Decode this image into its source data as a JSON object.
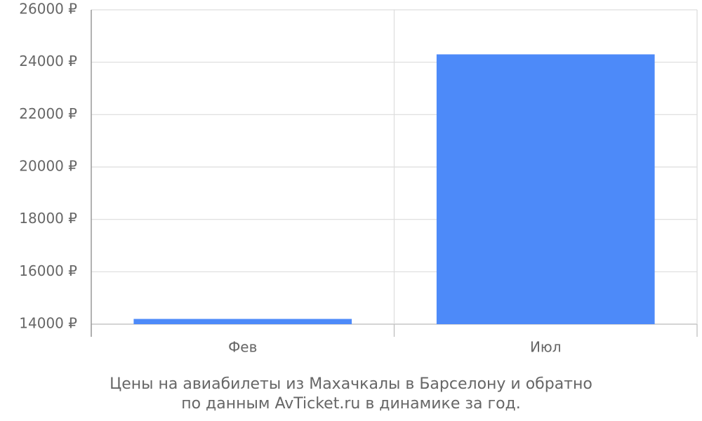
{
  "chart_data": {
    "type": "bar",
    "categories": [
      "Фев",
      "Июл"
    ],
    "values": [
      14200,
      24300
    ],
    "color": "#4d8af9",
    "ylim": [
      14000,
      26000
    ],
    "yticks": [
      {
        "value": 14000,
        "label": "14000 ₽"
      },
      {
        "value": 16000,
        "label": "16000 ₽"
      },
      {
        "value": 18000,
        "label": "18000 ₽"
      },
      {
        "value": 20000,
        "label": "20000 ₽"
      },
      {
        "value": 22000,
        "label": "22000 ₽"
      },
      {
        "value": 24000,
        "label": "24000 ₽"
      },
      {
        "value": 26000,
        "label": "26000 ₽"
      }
    ],
    "grid": true,
    "caption": [
      "Цены на авиабилеты из Махачкалы в Барселону и обратно",
      "по данным AvTicket.ru в динамике за год."
    ]
  }
}
